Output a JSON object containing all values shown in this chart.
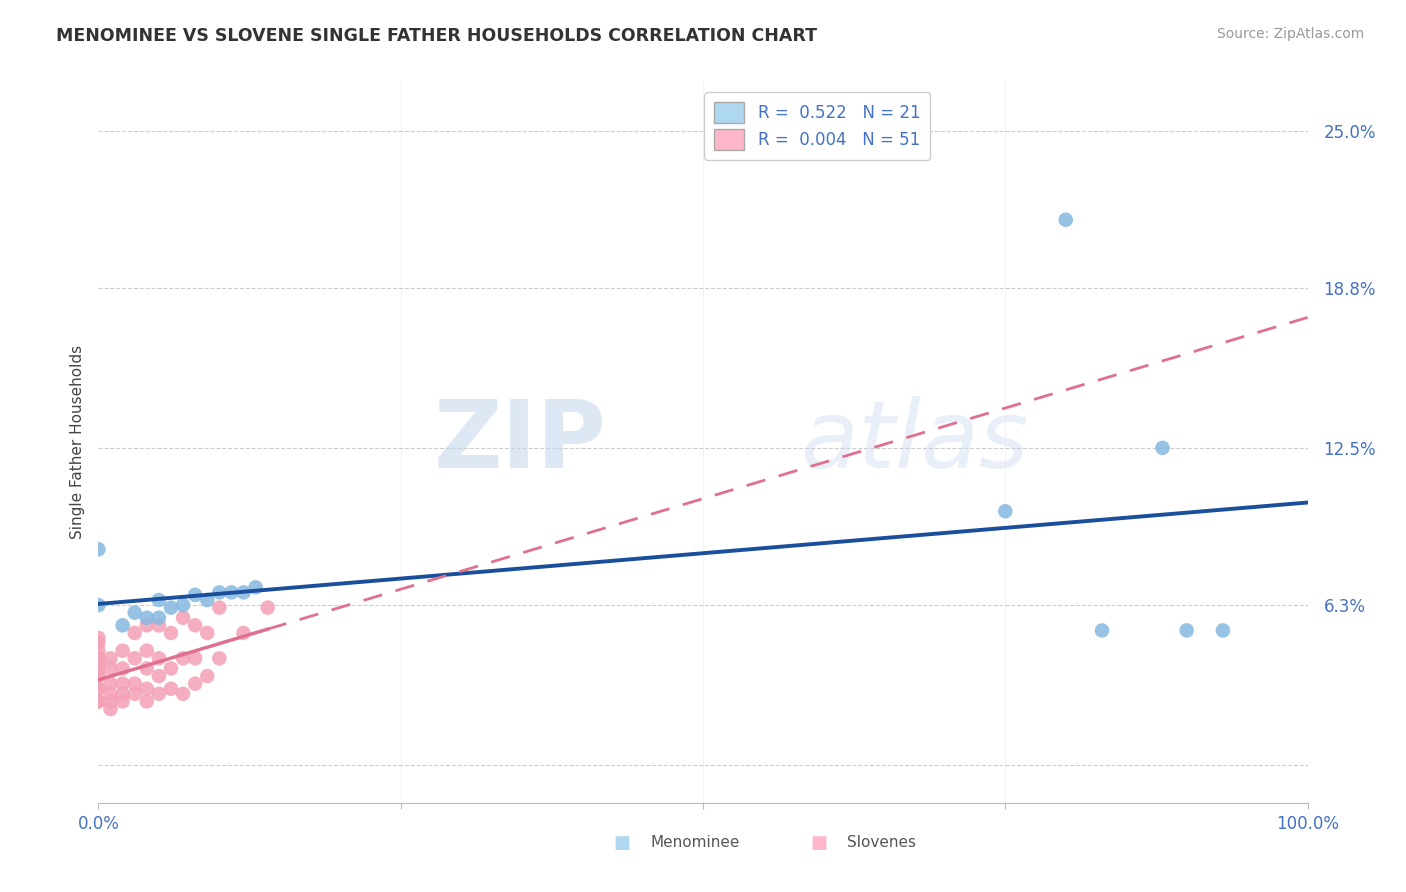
{
  "title": "MENOMINEE VS SLOVENE SINGLE FATHER HOUSEHOLDS CORRELATION CHART",
  "source": "Source: ZipAtlas.com",
  "ylabel": "Single Father Households",
  "menominee_x": [
    0.0,
    0.0,
    0.02,
    0.03,
    0.04,
    0.05,
    0.05,
    0.06,
    0.07,
    0.08,
    0.09,
    0.1,
    0.11,
    0.12,
    0.13,
    0.75,
    0.8,
    0.83,
    0.88,
    0.9,
    0.93
  ],
  "menominee_y": [
    0.085,
    0.063,
    0.055,
    0.06,
    0.058,
    0.058,
    0.065,
    0.062,
    0.063,
    0.067,
    0.065,
    0.068,
    0.068,
    0.068,
    0.07,
    0.1,
    0.215,
    0.053,
    0.125,
    0.053,
    0.053
  ],
  "slovene_x": [
    0.0,
    0.0,
    0.0,
    0.0,
    0.0,
    0.0,
    0.0,
    0.0,
    0.0,
    0.0,
    0.0,
    0.0,
    0.01,
    0.01,
    0.01,
    0.01,
    0.01,
    0.01,
    0.02,
    0.02,
    0.02,
    0.02,
    0.02,
    0.03,
    0.03,
    0.03,
    0.03,
    0.04,
    0.04,
    0.04,
    0.04,
    0.04,
    0.05,
    0.05,
    0.05,
    0.05,
    0.06,
    0.06,
    0.06,
    0.07,
    0.07,
    0.07,
    0.08,
    0.08,
    0.08,
    0.09,
    0.09,
    0.1,
    0.1,
    0.12,
    0.14
  ],
  "slovene_y": [
    0.025,
    0.025,
    0.03,
    0.03,
    0.035,
    0.035,
    0.038,
    0.04,
    0.042,
    0.045,
    0.048,
    0.05,
    0.022,
    0.025,
    0.028,
    0.032,
    0.038,
    0.042,
    0.025,
    0.028,
    0.032,
    0.038,
    0.045,
    0.028,
    0.032,
    0.042,
    0.052,
    0.025,
    0.03,
    0.038,
    0.045,
    0.055,
    0.028,
    0.035,
    0.042,
    0.055,
    0.03,
    0.038,
    0.052,
    0.028,
    0.042,
    0.058,
    0.032,
    0.042,
    0.055,
    0.035,
    0.052,
    0.042,
    0.062,
    0.052,
    0.062
  ],
  "menominee_color": "#85B8E0",
  "slovene_color": "#F4A0B5",
  "menominee_line_color": "#1A4F9C",
  "slovene_line_color": "#E07090",
  "background_color": "#FFFFFF",
  "watermark_zip": "ZIP",
  "watermark_atlas": "atlas",
  "xlim": [
    0.0,
    1.0
  ],
  "ylim": [
    -0.015,
    0.27
  ],
  "ytick_positions": [
    0.0,
    0.063,
    0.125,
    0.188,
    0.25
  ],
  "ytick_labels": [
    "",
    "6.3%",
    "12.5%",
    "18.8%",
    "25.0%"
  ],
  "xtick_positions": [
    0.0,
    0.25,
    0.5,
    0.75,
    1.0
  ],
  "xtick_labels": [
    "0.0%",
    "",
    "",
    "",
    "100.0%"
  ],
  "legend_r1": "R =  0.522   N = 21",
  "legend_r2": "R =  0.004   N = 51",
  "legend_color1": "#ADD8F0",
  "legend_color2": "#FFB6C8",
  "bottom_legend_menominee": "Menominee",
  "bottom_legend_slovenes": "Slovenes"
}
